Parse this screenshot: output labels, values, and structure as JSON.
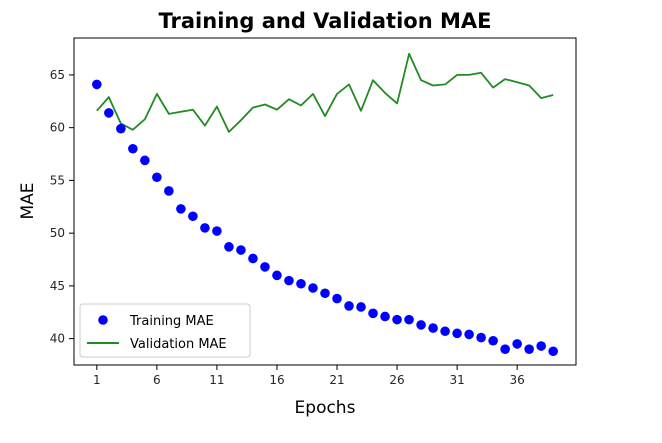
{
  "chart_data": {
    "type": "line",
    "title": "Training and Validation MAE",
    "xlabel": "Epochs",
    "ylabel": "MAE",
    "xlim": [
      -0.9,
      40.9
    ],
    "ylim": [
      37.5,
      68.5
    ],
    "x_ticks": [
      1,
      6,
      11,
      16,
      21,
      26,
      31,
      36
    ],
    "y_ticks": [
      40,
      45,
      50,
      55,
      60,
      65
    ],
    "grid": false,
    "legend_position": "lower-left",
    "x": [
      1,
      2,
      3,
      4,
      5,
      6,
      7,
      8,
      9,
      10,
      11,
      12,
      13,
      14,
      15,
      16,
      17,
      18,
      19,
      20,
      21,
      22,
      23,
      24,
      25,
      26,
      27,
      28,
      29,
      30,
      31,
      32,
      33,
      34,
      35,
      36,
      37,
      38,
      39
    ],
    "series": [
      {
        "name": "Training MAE",
        "style": "scatter",
        "color": "#0000ff",
        "values": [
          64.1,
          61.4,
          59.9,
          58.0,
          56.9,
          55.3,
          54.0,
          52.3,
          51.6,
          50.5,
          50.2,
          48.7,
          48.4,
          47.6,
          46.8,
          46.0,
          45.5,
          45.2,
          44.8,
          44.3,
          43.8,
          43.1,
          43.0,
          42.4,
          42.1,
          41.8,
          41.8,
          41.3,
          41.0,
          40.7,
          40.5,
          40.4,
          40.1,
          39.8,
          39.0,
          39.5,
          39.0,
          39.3,
          38.8
        ]
      },
      {
        "name": "Validation MAE",
        "style": "line",
        "color": "#228b22",
        "values": [
          61.6,
          62.9,
          60.4,
          59.8,
          60.8,
          63.2,
          61.3,
          61.5,
          61.7,
          60.2,
          62.0,
          59.6,
          60.7,
          61.9,
          62.2,
          61.7,
          62.7,
          62.1,
          63.2,
          61.1,
          63.2,
          64.1,
          61.6,
          64.5,
          63.3,
          62.3,
          67.0,
          64.5,
          64.0,
          64.1,
          65.0,
          65.0,
          65.2,
          63.8,
          64.6,
          64.3,
          64.0,
          62.8,
          63.1
        ]
      }
    ]
  }
}
